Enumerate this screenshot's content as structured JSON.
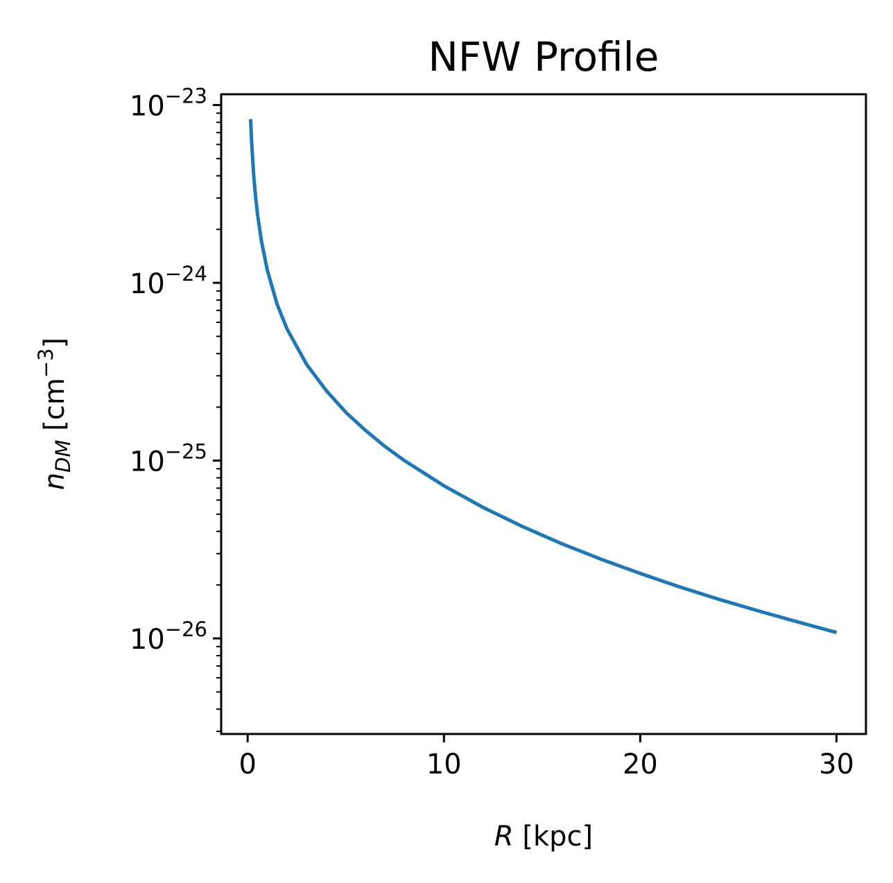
{
  "chart_data": {
    "type": "line",
    "title": "NFW Profile",
    "xlabel": {
      "var": "R",
      "unit": " [kpc]"
    },
    "ylabel": {
      "var": "n",
      "sub": "DM",
      "unit_pre": " [cm",
      "unit_exp": "−3",
      "unit_post": "]"
    },
    "x_ticks": [
      {
        "value": 0,
        "label": "0"
      },
      {
        "value": 10,
        "label": "10"
      },
      {
        "value": 20,
        "label": "20"
      },
      {
        "value": 30,
        "label": "30"
      }
    ],
    "y_ticks": [
      {
        "exp": -23,
        "base": "10",
        "sup": "−23"
      },
      {
        "exp": -24,
        "base": "10",
        "sup": "−24"
      },
      {
        "exp": -25,
        "base": "10",
        "sup": "−25"
      },
      {
        "exp": -26,
        "base": "10",
        "sup": "−26"
      }
    ],
    "xlim": [
      -1.35,
      31.5
    ],
    "ylim": [
      2.9e-27,
      1.15e-23
    ],
    "yscale": "log",
    "grid": false,
    "series": [
      {
        "color": "#1f77b4",
        "profile": "NFW",
        "x": [
          0.15,
          0.2,
          0.3,
          0.4,
          0.5,
          0.7,
          1,
          1.5,
          2,
          3,
          4,
          5,
          6,
          7,
          8,
          10,
          12,
          14,
          16,
          18,
          20,
          22,
          24,
          26,
          28,
          30
        ],
        "y": [
          8.33e-24,
          6.23e-24,
          4.12e-24,
          3.07e-24,
          2.44e-24,
          1.72e-24,
          1.18e-24,
          7.58e-25,
          5.52e-25,
          3.48e-25,
          2.48e-25,
          1.87e-25,
          1.48e-25,
          1.2e-25,
          9.98e-26,
          7.22e-26,
          5.45e-26,
          4.26e-26,
          3.41e-26,
          2.79e-26,
          2.32e-26,
          1.95e-26,
          1.66e-26,
          1.43e-26,
          1.24e-26,
          1.08e-26
        ]
      }
    ]
  }
}
